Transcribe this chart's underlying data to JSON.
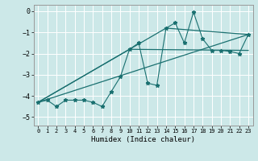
{
  "xlabel": "Humidex (Indice chaleur)",
  "ylabel": "",
  "bg_color": "#cce8e8",
  "grid_color": "#ffffff",
  "line_color": "#1a7070",
  "xlim": [
    -0.5,
    23.5
  ],
  "ylim": [
    -5.4,
    0.3
  ],
  "xticks": [
    0,
    1,
    2,
    3,
    4,
    5,
    6,
    7,
    8,
    9,
    10,
    11,
    12,
    13,
    14,
    15,
    16,
    17,
    18,
    19,
    20,
    21,
    22,
    23
  ],
  "yticks": [
    0,
    -1,
    -2,
    -3,
    -4,
    -5
  ],
  "scatter_x": [
    0,
    1,
    2,
    3,
    4,
    5,
    6,
    7,
    8,
    9,
    10,
    11,
    12,
    13,
    14,
    15,
    16,
    17,
    18,
    19,
    20,
    21,
    22,
    23
  ],
  "scatter_y": [
    -4.3,
    -4.2,
    -4.5,
    -4.2,
    -4.2,
    -4.2,
    -4.3,
    -4.5,
    -3.8,
    -3.1,
    -1.8,
    -1.5,
    -3.4,
    -3.5,
    -0.8,
    -0.55,
    -1.5,
    -0.05,
    -1.3,
    -1.85,
    -1.85,
    -1.9,
    -2.0,
    -1.1
  ],
  "line1_x": [
    0,
    23
  ],
  "line1_y": [
    -4.3,
    -1.1
  ],
  "line2_x": [
    0,
    10,
    23
  ],
  "line2_y": [
    -4.3,
    -1.8,
    -1.85
  ],
  "line3_x": [
    0,
    14,
    23
  ],
  "line3_y": [
    -4.3,
    -0.8,
    -1.1
  ]
}
